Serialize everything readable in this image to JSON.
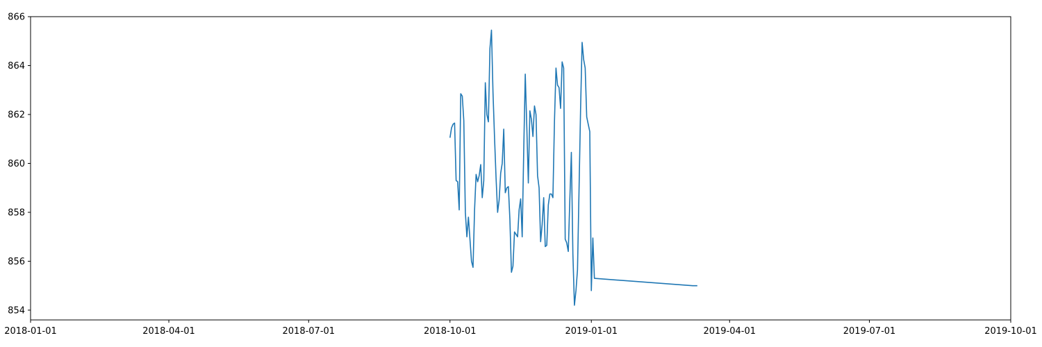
{
  "chart_data": {
    "type": "line",
    "title": "",
    "xlabel": "",
    "ylabel": "",
    "x_axis_type": "date",
    "xlim": [
      "2018-01-01",
      "2019-10-01"
    ],
    "ylim": [
      853.6,
      866
    ],
    "x_ticks": [
      "2018-01-01",
      "2018-04-01",
      "2018-07-01",
      "2018-10-01",
      "2019-01-01",
      "2019-04-01",
      "2019-07-01",
      "2019-10-01"
    ],
    "y_ticks": [
      854,
      856,
      858,
      860,
      862,
      864,
      866
    ],
    "grid": false,
    "legend": "none",
    "series": [
      {
        "color": "#1f77b4",
        "x": [
          "2018-10-01",
          "2018-10-02",
          "2018-10-03",
          "2018-10-04",
          "2018-10-05",
          "2018-10-06",
          "2018-10-07",
          "2018-10-08",
          "2018-10-09",
          "2018-10-10",
          "2018-10-11",
          "2018-10-12",
          "2018-10-13",
          "2018-10-14",
          "2018-10-15",
          "2018-10-16",
          "2018-10-17",
          "2018-10-18",
          "2018-10-19",
          "2018-10-20",
          "2018-10-21",
          "2018-10-22",
          "2018-10-23",
          "2018-10-24",
          "2018-10-25",
          "2018-10-26",
          "2018-10-27",
          "2018-10-28",
          "2018-10-29",
          "2018-10-30",
          "2018-10-31",
          "2018-11-01",
          "2018-11-02",
          "2018-11-03",
          "2018-11-04",
          "2018-11-05",
          "2018-11-06",
          "2018-11-07",
          "2018-11-08",
          "2018-11-09",
          "2018-11-10",
          "2018-11-11",
          "2018-11-12",
          "2018-11-13",
          "2018-11-14",
          "2018-11-15",
          "2018-11-16",
          "2018-11-17",
          "2018-11-18",
          "2018-11-19",
          "2018-11-20",
          "2018-11-21",
          "2018-11-22",
          "2018-11-23",
          "2018-11-24",
          "2018-11-25",
          "2018-11-26",
          "2018-11-27",
          "2018-11-28",
          "2018-11-29",
          "2018-11-30",
          "2018-12-01",
          "2018-12-02",
          "2018-12-03",
          "2018-12-04",
          "2018-12-05",
          "2018-12-06",
          "2018-12-07",
          "2018-12-08",
          "2018-12-09",
          "2018-12-10",
          "2018-12-11",
          "2018-12-12",
          "2018-12-13",
          "2018-12-14",
          "2018-12-15",
          "2018-12-16",
          "2018-12-17",
          "2018-12-18",
          "2018-12-19",
          "2018-12-20",
          "2018-12-21",
          "2018-12-22",
          "2018-12-23",
          "2018-12-24",
          "2018-12-25",
          "2018-12-26",
          "2018-12-27",
          "2018-12-28",
          "2018-12-29",
          "2018-12-30",
          "2018-12-31",
          "2019-01-01",
          "2019-01-02",
          "2019-01-03",
          "2019-03-08",
          "2019-03-09",
          "2019-03-10",
          "2019-03-11"
        ],
        "y": [
          861.05,
          861.45,
          861.6,
          861.65,
          859.3,
          859.25,
          858.1,
          862.85,
          862.75,
          861.75,
          858.0,
          857.0,
          857.8,
          856.9,
          856.0,
          855.75,
          858.1,
          859.55,
          859.25,
          859.5,
          859.95,
          858.6,
          859.3,
          863.3,
          862.0,
          861.7,
          864.7,
          865.45,
          862.9,
          861.05,
          859.4,
          858.0,
          858.5,
          859.6,
          860.0,
          861.4,
          858.8,
          859.0,
          859.05,
          857.7,
          855.55,
          855.8,
          857.2,
          857.1,
          857.0,
          858.1,
          858.55,
          857.0,
          860.5,
          863.65,
          861.5,
          859.2,
          862.15,
          861.8,
          861.1,
          862.35,
          862.0,
          859.5,
          859.0,
          856.8,
          857.5,
          858.6,
          856.6,
          856.65,
          858.3,
          858.75,
          858.75,
          858.6,
          861.7,
          863.9,
          863.2,
          863.1,
          862.25,
          864.15,
          863.9,
          856.9,
          856.75,
          856.4,
          858.5,
          860.45,
          856.3,
          854.2,
          854.8,
          855.65,
          858.9,
          862.2,
          864.95,
          864.25,
          863.9,
          861.9,
          861.6,
          861.3,
          854.8,
          856.95,
          855.3,
          855.0,
          855.0,
          855.0,
          855.0
        ]
      }
    ]
  }
}
